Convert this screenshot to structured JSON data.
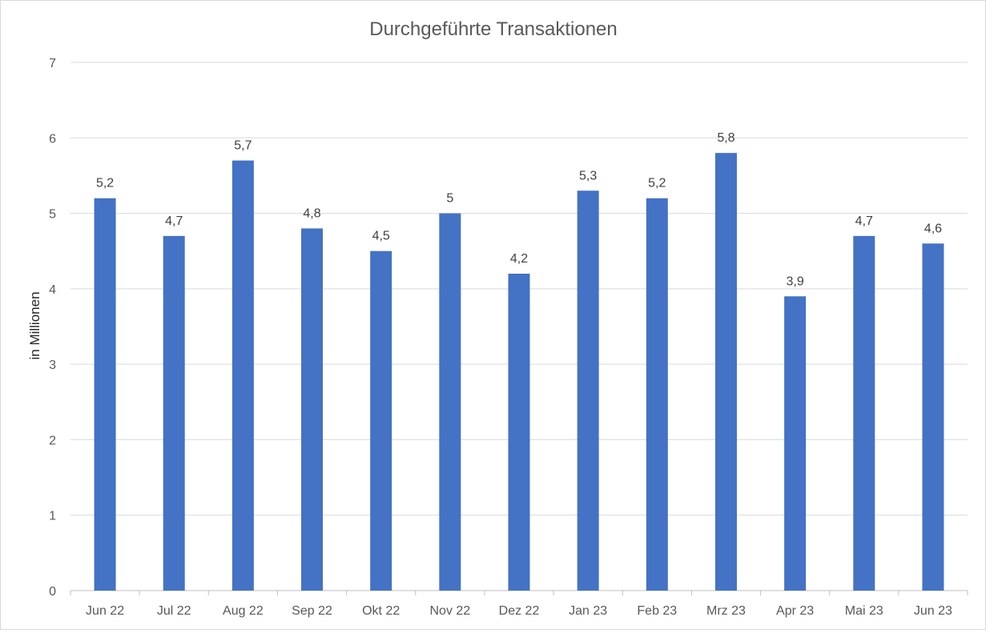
{
  "chart_data": {
    "type": "bar",
    "title": "Durchgeführte Transaktionen",
    "xlabel": "",
    "ylabel": "in Millionen",
    "categories": [
      "Jun 22",
      "Jul 22",
      "Aug 22",
      "Sep 22",
      "Okt 22",
      "Nov 22",
      "Dez 22",
      "Jan 23",
      "Feb 23",
      "Mrz 23",
      "Apr 23",
      "Mai 23",
      "Jun 23"
    ],
    "values": [
      5.2,
      4.7,
      5.7,
      4.8,
      4.5,
      5,
      4.2,
      5.3,
      5.2,
      5.8,
      3.9,
      4.7,
      4.6
    ],
    "data_labels": [
      "5,2",
      "4,7",
      "5,7",
      "4,8",
      "4,5",
      "5",
      "4,2",
      "5,3",
      "5,2",
      "5,8",
      "3,9",
      "4,7",
      "4,6"
    ],
    "yticks": [
      "0",
      "1",
      "2",
      "3",
      "4",
      "5",
      "6",
      "7"
    ],
    "ylim": [
      0,
      7
    ],
    "grid": true,
    "legend": "none",
    "bar_color": "#4472c4"
  }
}
